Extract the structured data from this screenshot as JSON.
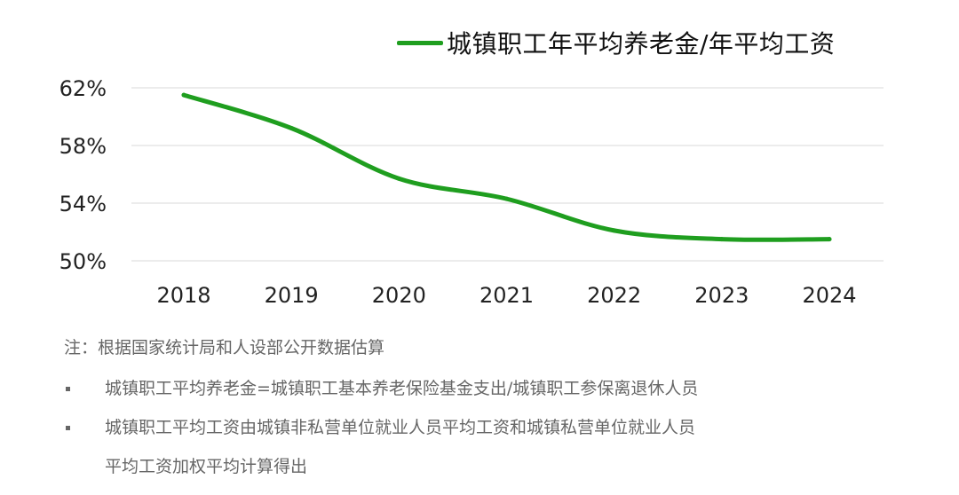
{
  "chart_data": {
    "type": "line",
    "x": [
      "2018",
      "2019",
      "2020",
      "2021",
      "2022",
      "2023",
      "2024"
    ],
    "series": [
      {
        "name": "城镇职工年平均养老金/年平均工资",
        "values": [
          61.5,
          59.2,
          55.7,
          54.3,
          52.1,
          51.5,
          51.5
        ],
        "color": "#1f9e1f"
      }
    ],
    "ytick_labels": [
      "62%",
      "58%",
      "54%",
      "50%"
    ],
    "yticks": [
      62,
      58,
      54,
      50
    ],
    "ylim": [
      50,
      62
    ],
    "grid": true,
    "legend_position": "top-right"
  },
  "notes": {
    "title": "注：根据国家统计局和人设部公开数据估算",
    "bullet1": "城镇职工平均养老金=城镇职工基本养老保险基金支出/城镇职工参保离退休人员",
    "bullet2_line1": "城镇职工平均工资由城镇非私营单位就业人员平均工资和城镇私营单位就业人员",
    "bullet2_line2": "平均工资加权平均计算得出"
  }
}
